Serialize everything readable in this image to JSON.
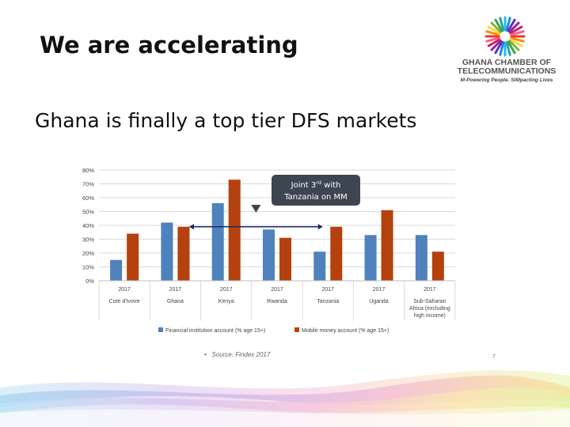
{
  "slide": {
    "title": "We are accelerating",
    "subtitle": "Ghana is finally a top tier DFS markets",
    "source": "Source: Findex 2017",
    "source_bullet": "•",
    "page_number": "7"
  },
  "logo": {
    "name_line1": "GHANA CHAMBER OF",
    "name_line2": "TELECOMMUNICATIONS",
    "tagline": "M-Powering People. SIMpacting Lives"
  },
  "annotation": {
    "line1_pre": "Joint 3",
    "line1_sup": "rd",
    "line1_post": " with",
    "line2": "Tanzania on MM",
    "color": "#3d4551"
  },
  "chart_data": {
    "type": "bar",
    "year_label": "2017",
    "categories": [
      [
        "Cote d'Ivoire"
      ],
      [
        "Ghana"
      ],
      [
        "Kenya"
      ],
      [
        "Rwanda"
      ],
      [
        "Tanzania"
      ],
      [
        "Uganda"
      ],
      [
        "Sub-Saharan",
        "Africa (excluding",
        "high income)"
      ]
    ],
    "series": [
      {
        "name": "Financial institution account (% age 15+)",
        "color": "#4f81bd",
        "values": [
          15,
          42,
          56,
          37,
          21,
          33,
          33
        ]
      },
      {
        "name": "Mobile money account (% age 15+)",
        "color": "#b5410f",
        "values": [
          34,
          39,
          73,
          31,
          39,
          51,
          21
        ]
      }
    ],
    "ylim": [
      0,
      80
    ],
    "yticks": [
      "0%",
      "10%",
      "20%",
      "30%",
      "40%",
      "50%",
      "60%",
      "70%",
      "80%"
    ],
    "grid": true,
    "legend_position": "bottom",
    "annotation_arrow_value": 39
  }
}
